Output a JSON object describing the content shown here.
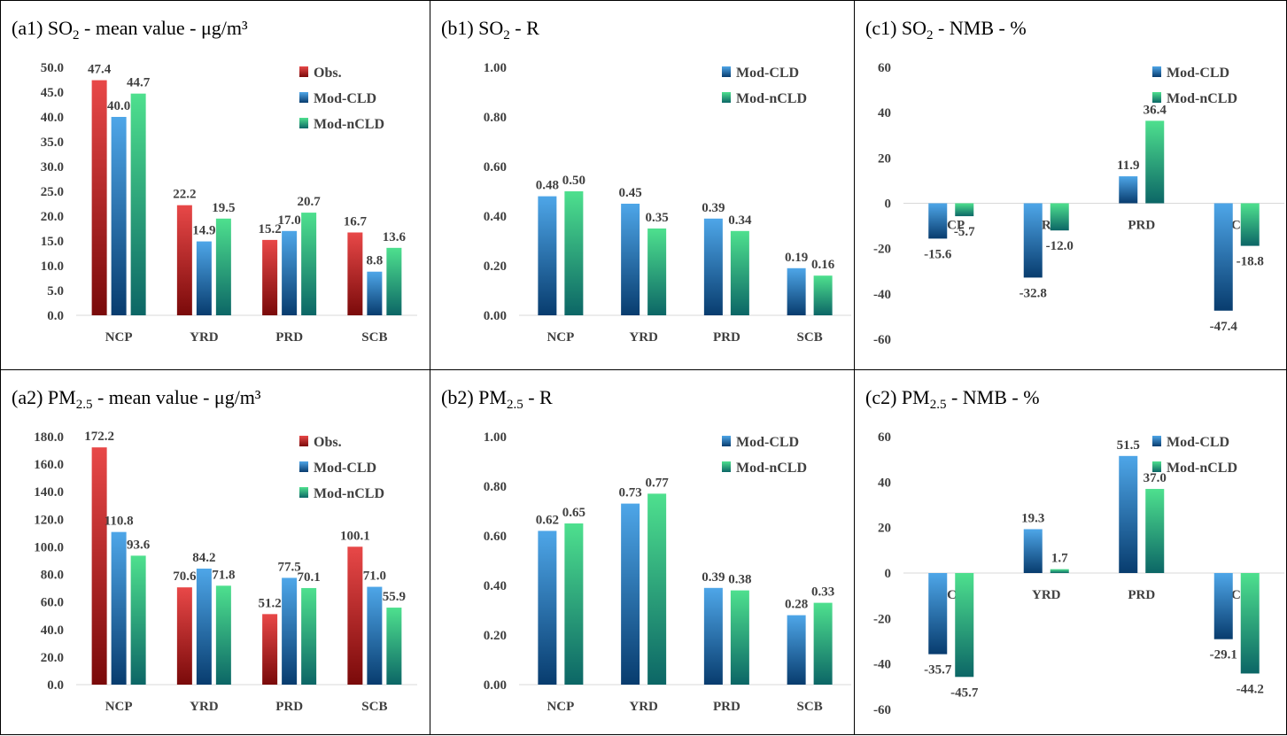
{
  "colors": {
    "obs_top": "#e84848",
    "obs_bottom": "#7a0a0a",
    "cld_top": "#4ea6e8",
    "cld_bottom": "#083c6e",
    "ncld_top": "#4ee08e",
    "ncld_bottom": "#0c6666",
    "axis": "#404040"
  },
  "chart_data": [
    {
      "id": "a1",
      "type": "bar",
      "title_parts": {
        "pre": "(a1) SO",
        "sub": "2",
        "post": " - mean value - μg/m³"
      },
      "categories": [
        "NCP",
        "YRD",
        "PRD",
        "SCB"
      ],
      "series": [
        {
          "name": "Obs.",
          "values": [
            47.4,
            22.2,
            15.2,
            16.7
          ],
          "labels": [
            "47.4",
            "22.2",
            "15.2",
            "16.7"
          ]
        },
        {
          "name": "Mod-CLD",
          "values": [
            40.0,
            14.9,
            17.0,
            8.8
          ],
          "labels": [
            "40.0",
            "14.9",
            "17.0",
            "8.8"
          ]
        },
        {
          "name": "Mod-nCLD",
          "values": [
            44.7,
            19.5,
            20.7,
            13.6
          ],
          "labels": [
            "44.7",
            "19.5",
            "20.7",
            "13.6"
          ]
        }
      ],
      "ylim": [
        0,
        50
      ],
      "yticks": [
        0,
        5,
        10,
        15,
        20,
        25,
        30,
        35,
        40,
        45,
        50
      ],
      "ytick_labels": [
        "0.0",
        "5.0",
        "10.0",
        "15.0",
        "20.0",
        "25.0",
        "30.0",
        "35.0",
        "40.0",
        "45.0",
        "50.0"
      ],
      "legend": "top-right"
    },
    {
      "id": "b1",
      "type": "bar",
      "title_parts": {
        "pre": "(b1) SO",
        "sub": "2",
        "post": " -  R"
      },
      "categories": [
        "NCP",
        "YRD",
        "PRD",
        "SCB"
      ],
      "series": [
        {
          "name": "Mod-CLD",
          "values": [
            0.48,
            0.45,
            0.39,
            0.19
          ],
          "labels": [
            "0.48",
            "0.45",
            "0.39",
            "0.19"
          ]
        },
        {
          "name": "Mod-nCLD",
          "values": [
            0.5,
            0.35,
            0.34,
            0.16
          ],
          "labels": [
            "0.50",
            "0.35",
            "0.34",
            "0.16"
          ]
        }
      ],
      "ylim": [
        0,
        1
      ],
      "yticks": [
        0,
        0.2,
        0.4,
        0.6,
        0.8,
        1.0
      ],
      "ytick_labels": [
        "0.00",
        "0.20",
        "0.40",
        "0.60",
        "0.80",
        "1.00"
      ],
      "legend": "top-right"
    },
    {
      "id": "c1",
      "type": "bar",
      "title_parts": {
        "pre": "(c1) SO",
        "sub": "2",
        "post": " -  NMB - %"
      },
      "categories": [
        "NCP",
        "YRD",
        "PRD",
        "SCB"
      ],
      "series": [
        {
          "name": "Mod-CLD",
          "values": [
            -15.6,
            -32.8,
            11.9,
            -47.4
          ],
          "labels": [
            "-15.6",
            "-32.8",
            "11.9",
            "-47.4"
          ]
        },
        {
          "name": "Mod-nCLD",
          "values": [
            -5.7,
            -12.0,
            36.4,
            -18.8
          ],
          "labels": [
            "-5.7",
            "-12.0",
            "36.4",
            "-18.8"
          ]
        }
      ],
      "ylim": [
        -60,
        60
      ],
      "yticks": [
        -60,
        -40,
        -20,
        0,
        20,
        40,
        60
      ],
      "ytick_labels": [
        "-60",
        "-40",
        "-20",
        "0",
        "20",
        "40",
        "60"
      ],
      "legend": "top-right"
    },
    {
      "id": "a2",
      "type": "bar",
      "title_parts": {
        "pre": "(a2) PM",
        "sub": "2.5",
        "post": " -  mean value - μg/m³"
      },
      "categories": [
        "NCP",
        "YRD",
        "PRD",
        "SCB"
      ],
      "series": [
        {
          "name": "Obs.",
          "values": [
            172.2,
            70.6,
            51.2,
            100.1
          ],
          "labels": [
            "172.2",
            "70.6",
            "51.2",
            "100.1"
          ]
        },
        {
          "name": "Mod-CLD",
          "values": [
            110.8,
            84.2,
            77.5,
            71.0
          ],
          "labels": [
            "110.8",
            "84.2",
            "77.5",
            "71.0"
          ]
        },
        {
          "name": "Mod-nCLD",
          "values": [
            93.6,
            71.8,
            70.1,
            55.9
          ],
          "labels": [
            "93.6",
            "71.8",
            "70.1",
            "55.9"
          ]
        }
      ],
      "ylim": [
        0,
        180
      ],
      "yticks": [
        0,
        20,
        40,
        60,
        80,
        100,
        120,
        140,
        160,
        180
      ],
      "ytick_labels": [
        "0.0",
        "20.0",
        "40.0",
        "60.0",
        "80.0",
        "100.0",
        "120.0",
        "140.0",
        "160.0",
        "180.0"
      ],
      "legend": "top-right"
    },
    {
      "id": "b2",
      "type": "bar",
      "title_parts": {
        "pre": "(b2) PM",
        "sub": "2.5",
        "post": " -  R"
      },
      "categories": [
        "NCP",
        "YRD",
        "PRD",
        "SCB"
      ],
      "series": [
        {
          "name": "Mod-CLD",
          "values": [
            0.62,
            0.73,
            0.39,
            0.28
          ],
          "labels": [
            "0.62",
            "0.73",
            "0.39",
            "0.28"
          ]
        },
        {
          "name": "Mod-nCLD",
          "values": [
            0.65,
            0.77,
            0.38,
            0.33
          ],
          "labels": [
            "0.65",
            "0.77",
            "0.38",
            "0.33"
          ]
        }
      ],
      "ylim": [
        0,
        1
      ],
      "yticks": [
        0,
        0.2,
        0.4,
        0.6,
        0.8,
        1.0
      ],
      "ytick_labels": [
        "0.00",
        "0.20",
        "0.40",
        "0.60",
        "0.80",
        "1.00"
      ],
      "legend": "top-right"
    },
    {
      "id": "c2",
      "type": "bar",
      "title_parts": {
        "pre": "(c2) PM",
        "sub": "2.5",
        "post": " -  NMB - %"
      },
      "categories": [
        "NCP",
        "YRD",
        "PRD",
        "SCB"
      ],
      "series": [
        {
          "name": "Mod-CLD",
          "values": [
            -35.7,
            19.3,
            51.5,
            -29.1
          ],
          "labels": [
            "-35.7",
            "19.3",
            "51.5",
            "-29.1"
          ]
        },
        {
          "name": "Mod-nCLD",
          "values": [
            -45.7,
            1.7,
            37.0,
            -44.2
          ],
          "labels": [
            "-45.7",
            "1.7",
            "37.0",
            "-44.2"
          ]
        }
      ],
      "ylim": [
        -60,
        60
      ],
      "yticks": [
        -60,
        -40,
        -20,
        0,
        20,
        40,
        60
      ],
      "ytick_labels": [
        "-60",
        "-40",
        "-20",
        "0",
        "20",
        "40",
        "60"
      ],
      "legend": "top-right"
    }
  ]
}
